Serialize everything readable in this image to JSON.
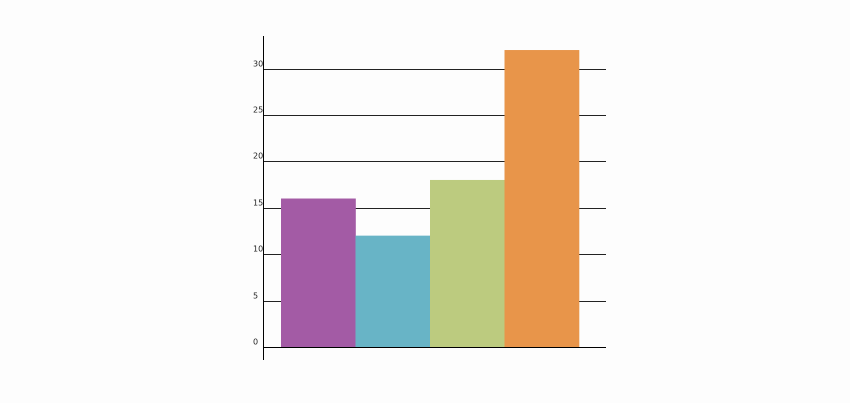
{
  "chart_data": {
    "type": "bar",
    "categories": [
      "",
      "",
      "",
      ""
    ],
    "values": [
      16,
      12,
      18,
      32
    ],
    "colors": [
      "#a35ba5",
      "#68b4c6",
      "#bccb7f",
      "#e8954a"
    ],
    "ylim": [
      0,
      35
    ],
    "yticks": [
      0,
      5,
      10,
      15,
      20,
      25,
      30
    ],
    "ytick_labels": [
      "0",
      "5",
      "10",
      "15",
      "20",
      "25",
      "30"
    ],
    "grid": true,
    "legend": "none",
    "title": "",
    "xlabel": "",
    "ylabel": ""
  }
}
